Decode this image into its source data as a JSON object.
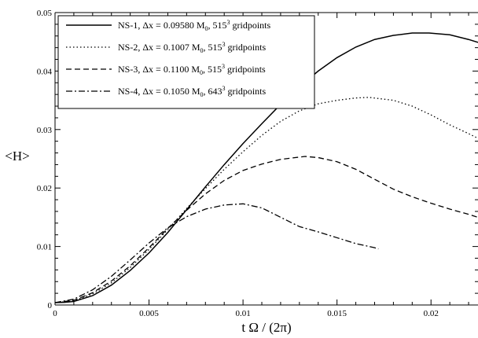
{
  "chart_data": {
    "type": "line",
    "title": "",
    "xlabel": "t Ω / (2π)",
    "ylabel": "<H>",
    "xlim": [
      0,
      0.0225
    ],
    "ylim": [
      0,
      0.05
    ],
    "xticks": [
      0,
      0.005,
      0.01,
      0.015,
      0.02
    ],
    "xtick_labels": [
      "0",
      "0.005",
      "0.01",
      "0.015",
      "0.02"
    ],
    "yticks": [
      0,
      0.01,
      0.02,
      0.03,
      0.04,
      0.05
    ],
    "ytick_labels": [
      "0",
      "0.01",
      "0.02",
      "0.03",
      "0.04",
      "0.05"
    ],
    "grid": false,
    "legend_position": "top-left",
    "series": [
      {
        "name": "NS-1, Δx = 0.09580 M0, 515³ gridpoints",
        "legend": {
          "prefix": "NS-1, Δx = 0.09580 M",
          "sub": "0",
          "mid": ", 515",
          "sup": "3",
          "suffix": " gridpoints"
        },
        "style": "solid",
        "points": [
          [
            0,
            0.0004
          ],
          [
            0.0005,
            0.00045
          ],
          [
            0.001,
            0.0006
          ],
          [
            0.002,
            0.0016
          ],
          [
            0.003,
            0.0034
          ],
          [
            0.004,
            0.0059
          ],
          [
            0.005,
            0.0089
          ],
          [
            0.006,
            0.0124
          ],
          [
            0.007,
            0.0163
          ],
          [
            0.008,
            0.0202
          ],
          [
            0.009,
            0.024
          ],
          [
            0.01,
            0.0276
          ],
          [
            0.011,
            0.031
          ],
          [
            0.012,
            0.0343
          ],
          [
            0.013,
            0.0373
          ],
          [
            0.014,
            0.04
          ],
          [
            0.015,
            0.0423
          ],
          [
            0.016,
            0.0441
          ],
          [
            0.017,
            0.0454
          ],
          [
            0.018,
            0.0461
          ],
          [
            0.019,
            0.0465
          ],
          [
            0.0199,
            0.0465
          ],
          [
            0.021,
            0.0462
          ],
          [
            0.022,
            0.0454
          ],
          [
            0.0225,
            0.0449
          ]
        ]
      },
      {
        "name": "NS-2, Δx = 0.1007 M0, 515³ gridpoints",
        "legend": {
          "prefix": "NS-2, Δx = 0.1007 M",
          "sub": "0",
          "mid": ", 515",
          "sup": "3",
          "suffix": " gridpoints"
        },
        "style": "dotted",
        "points": [
          [
            0,
            0.0004
          ],
          [
            0.001,
            0.0007
          ],
          [
            0.002,
            0.0019
          ],
          [
            0.003,
            0.0038
          ],
          [
            0.004,
            0.0064
          ],
          [
            0.005,
            0.0095
          ],
          [
            0.006,
            0.0129
          ],
          [
            0.007,
            0.0165
          ],
          [
            0.008,
            0.0199
          ],
          [
            0.009,
            0.0232
          ],
          [
            0.01,
            0.0262
          ],
          [
            0.011,
            0.029
          ],
          [
            0.012,
            0.0314
          ],
          [
            0.013,
            0.0332
          ],
          [
            0.014,
            0.0344
          ],
          [
            0.015,
            0.035
          ],
          [
            0.016,
            0.0354
          ],
          [
            0.0167,
            0.0355
          ],
          [
            0.018,
            0.035
          ],
          [
            0.019,
            0.034
          ],
          [
            0.02,
            0.0325
          ],
          [
            0.021,
            0.0308
          ],
          [
            0.022,
            0.0293
          ],
          [
            0.0225,
            0.0285
          ]
        ]
      },
      {
        "name": "NS-3, Δx = 0.1100 M0, 515³ gridpoints",
        "legend": {
          "prefix": "NS-3, Δx = 0.1100 M",
          "sub": "0",
          "mid": ", 515",
          "sup": "3",
          "suffix": " gridpoints"
        },
        "style": "dashed",
        "points": [
          [
            0,
            0.0004
          ],
          [
            0.001,
            0.0008
          ],
          [
            0.002,
            0.0021
          ],
          [
            0.003,
            0.0041
          ],
          [
            0.004,
            0.0067
          ],
          [
            0.005,
            0.0098
          ],
          [
            0.006,
            0.0131
          ],
          [
            0.007,
            0.0162
          ],
          [
            0.008,
            0.019
          ],
          [
            0.009,
            0.0213
          ],
          [
            0.01,
            0.023
          ],
          [
            0.011,
            0.0241
          ],
          [
            0.012,
            0.0249
          ],
          [
            0.0133,
            0.0254
          ],
          [
            0.014,
            0.0252
          ],
          [
            0.015,
            0.0245
          ],
          [
            0.016,
            0.0232
          ],
          [
            0.017,
            0.0215
          ],
          [
            0.018,
            0.0198
          ],
          [
            0.019,
            0.0185
          ],
          [
            0.02,
            0.0174
          ],
          [
            0.021,
            0.0164
          ],
          [
            0.022,
            0.0155
          ],
          [
            0.0225,
            0.015
          ]
        ]
      },
      {
        "name": "NS-4, Δx = 0.1050 M0, 643³ gridpoints",
        "legend": {
          "prefix": "NS-4, Δx = 0.1050 M",
          "sub": "0",
          "mid": ", 643",
          "sup": "3",
          "suffix": " gridpoints"
        },
        "style": "dashdot",
        "points": [
          [
            0,
            0.0004
          ],
          [
            0.001,
            0.001
          ],
          [
            0.002,
            0.0026
          ],
          [
            0.003,
            0.0049
          ],
          [
            0.004,
            0.0077
          ],
          [
            0.005,
            0.0106
          ],
          [
            0.006,
            0.0132
          ],
          [
            0.007,
            0.0151
          ],
          [
            0.008,
            0.0164
          ],
          [
            0.009,
            0.0171
          ],
          [
            0.01,
            0.0173
          ],
          [
            0.011,
            0.0166
          ],
          [
            0.012,
            0.015
          ],
          [
            0.013,
            0.0134
          ],
          [
            0.014,
            0.0125
          ],
          [
            0.015,
            0.0115
          ],
          [
            0.016,
            0.0105
          ],
          [
            0.017,
            0.0098
          ],
          [
            0.0172,
            0.0096
          ]
        ]
      }
    ]
  }
}
